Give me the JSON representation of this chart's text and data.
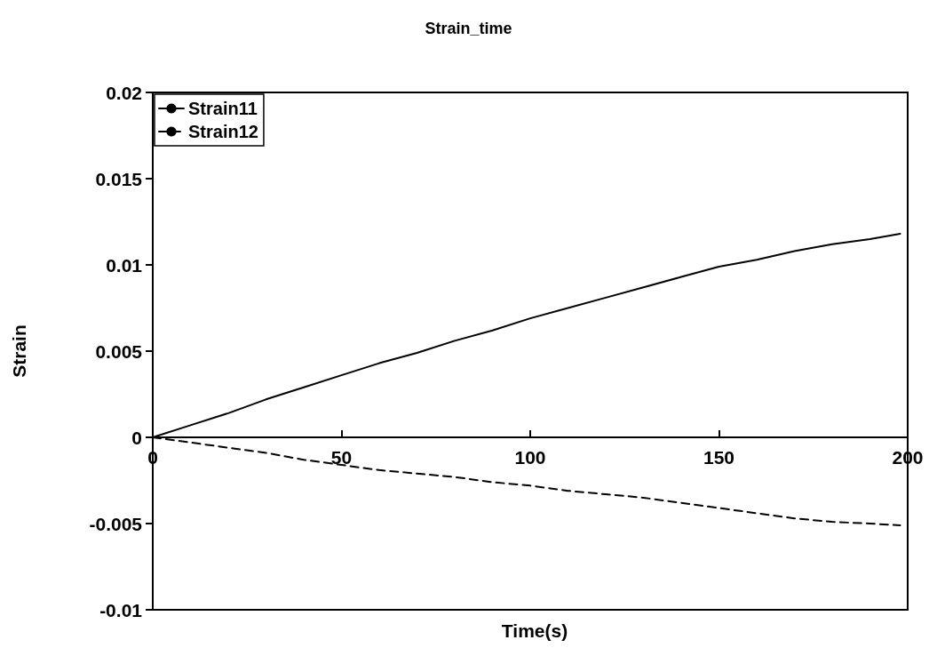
{
  "chart_data": {
    "type": "line",
    "title": "Strain_time",
    "xlabel": "Time(s)",
    "ylabel": "Strain",
    "xlim": [
      0,
      200
    ],
    "xticks": [
      0,
      50,
      100,
      150,
      200
    ],
    "ylim": [
      -0.01,
      0.02
    ],
    "yticks": [
      -0.01,
      -0.005,
      0,
      0.005,
      0.01,
      0.015,
      0.02
    ],
    "grid": false,
    "legend": "top left",
    "marker": "none",
    "series": [
      {
        "name": "Strain11",
        "color": "#000000",
        "line_style": "solid",
        "x": [
          0,
          10,
          20,
          30,
          40,
          50,
          60,
          70,
          80,
          90,
          100,
          110,
          120,
          130,
          140,
          150,
          160,
          170,
          180,
          190,
          198
        ],
        "values": [
          0,
          0.0007,
          0.0014,
          0.0022,
          0.0029,
          0.0036,
          0.0043,
          0.0049,
          0.0056,
          0.0062,
          0.0069,
          0.0075,
          0.0081,
          0.0087,
          0.0093,
          0.0099,
          0.0103,
          0.0108,
          0.0112,
          0.0115,
          0.0118
        ]
      },
      {
        "name": "Strain12",
        "color": "#000000",
        "line_style": "dashed",
        "x": [
          0,
          10,
          20,
          30,
          40,
          50,
          60,
          70,
          80,
          90,
          100,
          110,
          120,
          130,
          140,
          150,
          160,
          170,
          180,
          190,
          198
        ],
        "values": [
          0,
          -0.0003,
          -0.0006,
          -0.0009,
          -0.0013,
          -0.0016,
          -0.0019,
          -0.0021,
          -0.0023,
          -0.0026,
          -0.0028,
          -0.0031,
          -0.0033,
          -0.0035,
          -0.0038,
          -0.0041,
          -0.0044,
          -0.0047,
          -0.0049,
          -0.005,
          -0.0051
        ]
      }
    ]
  }
}
